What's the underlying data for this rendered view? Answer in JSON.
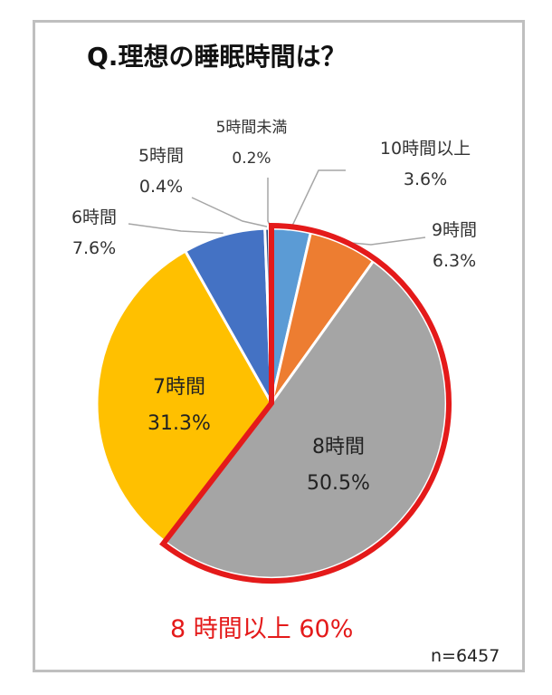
{
  "chart_data": {
    "type": "pie",
    "title": "Q.理想の睡眠時間は？",
    "slices": [
      {
        "label": "10時間以上",
        "value": 3.6,
        "value_text": "3.6%",
        "color": "#5b9bd5"
      },
      {
        "label": "9時間",
        "value": 6.3,
        "value_text": "6.3%",
        "color": "#ed7d31"
      },
      {
        "label": "8時間",
        "value": 50.5,
        "value_text": "50.5%",
        "color": "#a5a5a5"
      },
      {
        "label": "7時間",
        "value": 31.3,
        "value_text": "31.3%",
        "color": "#ffc000"
      },
      {
        "label": "6時間",
        "value": 7.6,
        "value_text": "7.6%",
        "color": "#4472c4"
      },
      {
        "label": "5時間",
        "value": 0.4,
        "value_text": "0.4%",
        "color": "#264478"
      },
      {
        "label": "5時間未満",
        "value": 0.2,
        "value_text": "0.2%",
        "color": "#9e480e"
      }
    ],
    "highlight": {
      "slices": [
        "10時間以上",
        "9時間",
        "8時間"
      ],
      "text": "8 時間以上 60%",
      "color": "#e41a1a"
    },
    "sample_size": "n=6457"
  }
}
